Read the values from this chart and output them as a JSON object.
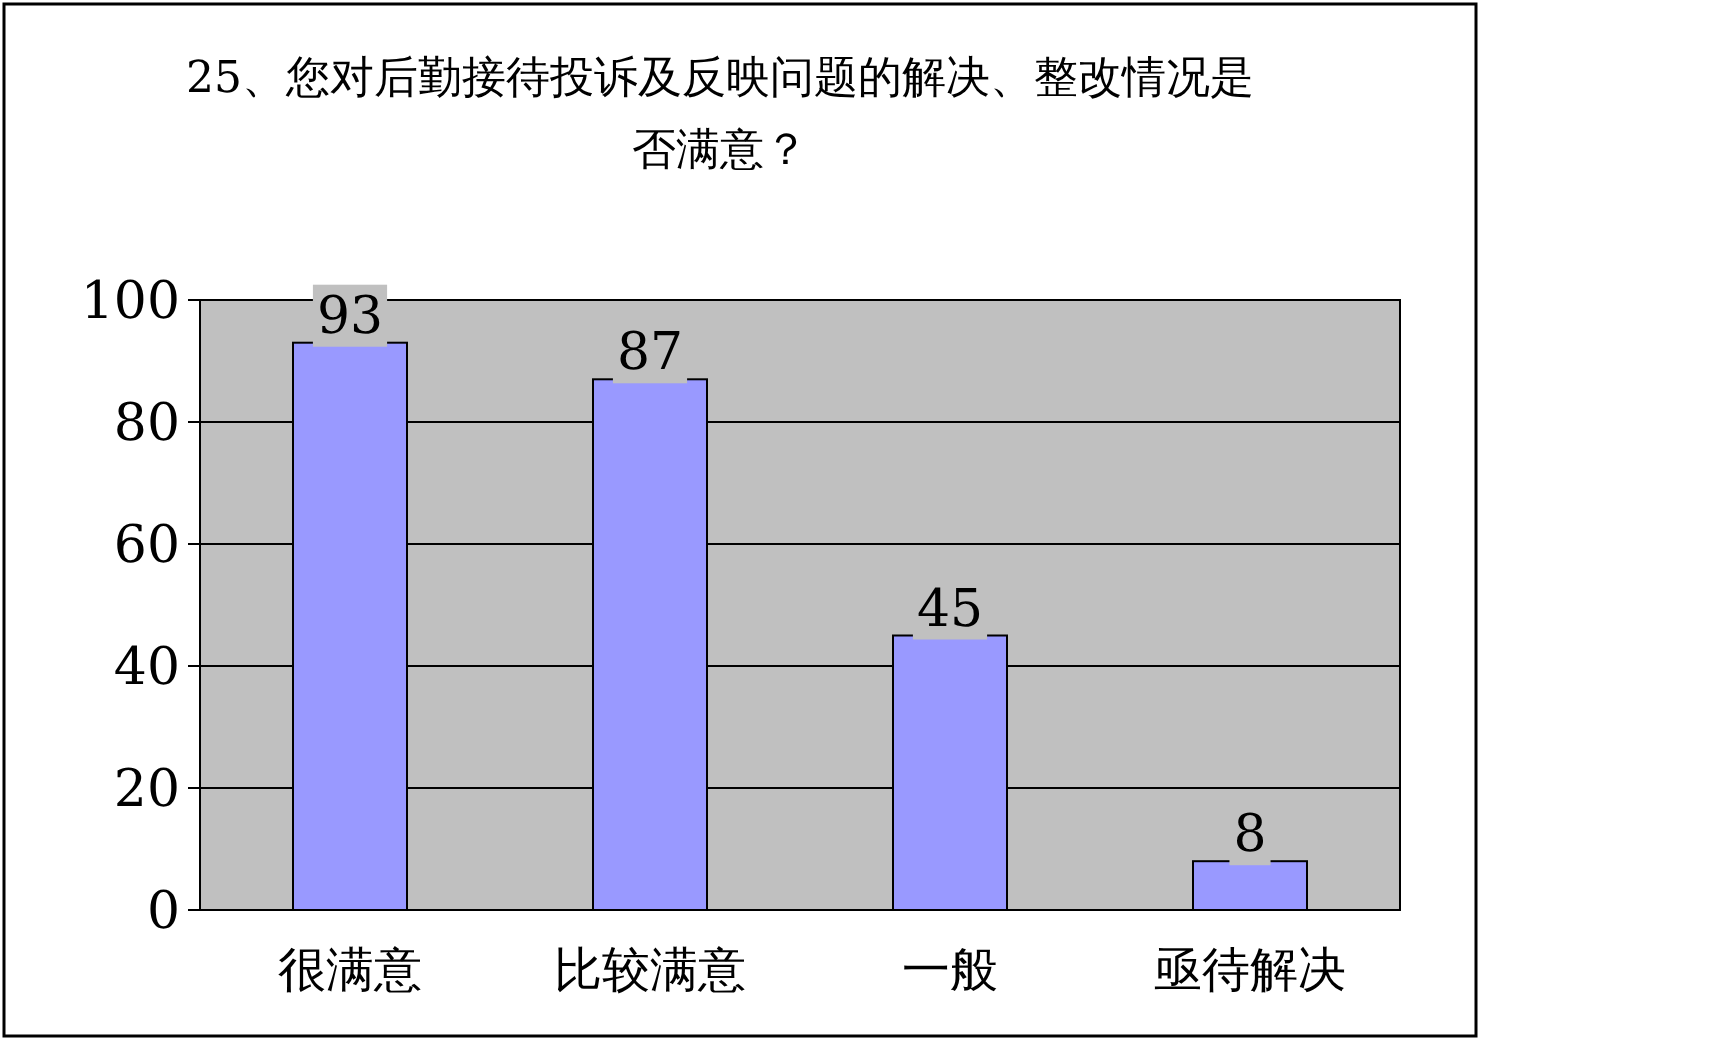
{
  "chart_data": {
    "type": "bar",
    "title": "25、您对后勤接待投诉及反映问题的解决、整改情况是否满意？",
    "categories": [
      "很满意",
      "比较满意",
      "一般",
      "亟待解决"
    ],
    "values": [
      93,
      87,
      45,
      8
    ],
    "color": "#9999ff",
    "ylim": [
      0,
      100
    ],
    "yticks": [
      0,
      20,
      40,
      60,
      80,
      100
    ],
    "grid": "y",
    "data_labels": true
  }
}
